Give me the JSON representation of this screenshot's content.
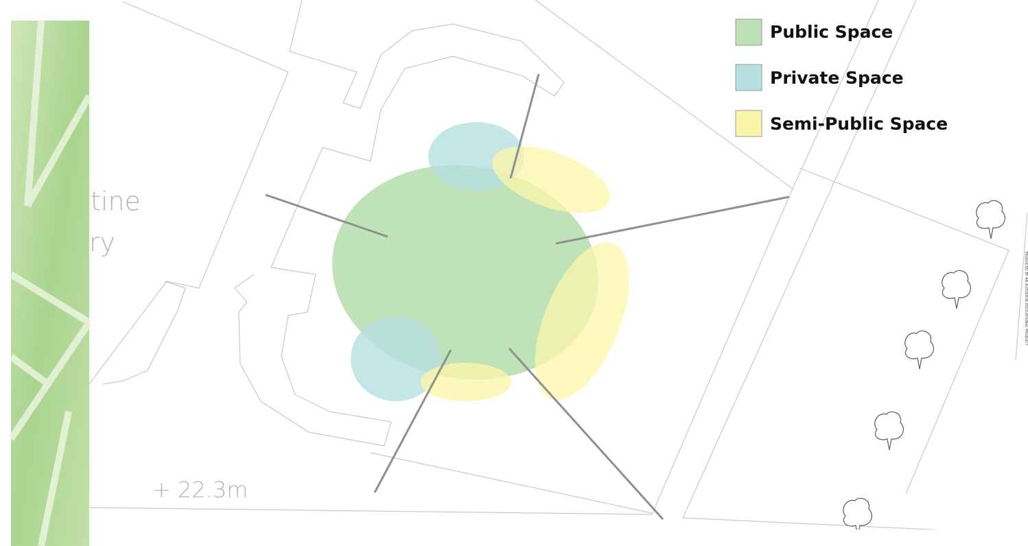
{
  "legend": [
    {
      "label": "Public Space",
      "color": "#bde0b4"
    },
    {
      "label": "Private Space",
      "color": "#b7e0e0"
    },
    {
      "label": "Semi-Public Space",
      "color": "#fbf5a9"
    }
  ],
  "labels": [
    "tine",
    "ry"
  ],
  "elevation": "+ 22.3m",
  "watermark": "PRODUCED BY AN AUTODESK EDUCATIONAL PRODUCT"
}
